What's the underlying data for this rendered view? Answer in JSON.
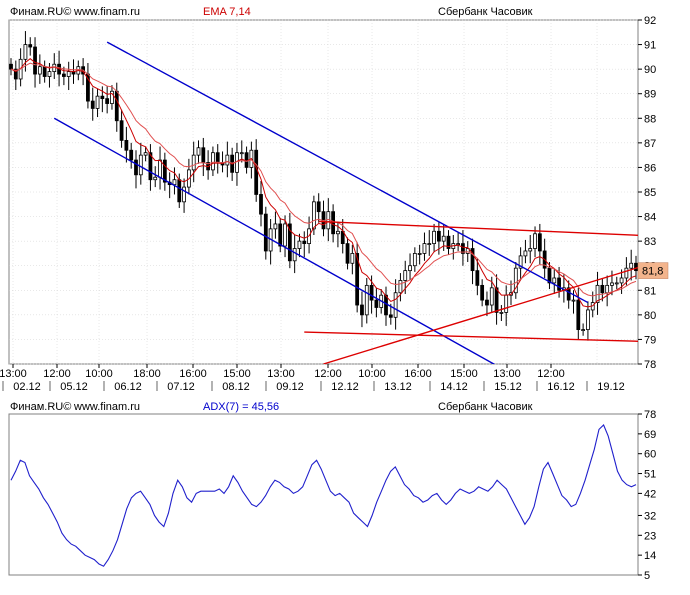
{
  "colors": {
    "background": "#ffffff",
    "plot_border": "#808080",
    "grid": "#d0d0d0",
    "candle": "#000000",
    "ema_fast": "#cc0000",
    "ema_slow": "#e05050",
    "trend_channel": "#0000cc",
    "trend_red": "#dd0000",
    "adx_line": "#2020cc",
    "ema_title": "#cc0000",
    "adx_title": "#0000cc",
    "price_tag_bg": "#f3b48c",
    "text": "#000000"
  },
  "price_panel": {
    "brand": "Финам.RU©",
    "site": "www.finam.ru",
    "indicator_label": "EMA 7,14",
    "instrument": "Сбербанк Часовик",
    "last_price_label": "81,8"
  },
  "adx_panel": {
    "brand": "Финам.RU©",
    "site": "www.finam.ru",
    "indicator_label": "ADX(7) = 45,56",
    "instrument": "Сбербанк Часовик"
  },
  "time_axis": {
    "times": [
      "13:00",
      "12:00",
      "10:00",
      "18:00",
      "16:00",
      "15:00",
      "13:00",
      "12:00",
      "10:00",
      "16:00",
      "15:00",
      "13:00",
      "12:00"
    ],
    "dates": [
      "02.12",
      "05.12",
      "06.12",
      "07.12",
      "08.12",
      "09.12",
      "12.12",
      "13.12",
      "14.12",
      "15.12",
      "16.12",
      "19.12"
    ]
  },
  "chart_data": [
    {
      "type": "candlestick",
      "title": "Сбербанк Часовик",
      "indicator": "EMA 7,14",
      "ylim": [
        78,
        92
      ],
      "yticks": [
        78,
        79,
        80,
        81,
        82,
        83,
        84,
        85,
        86,
        87,
        88,
        89,
        90,
        91,
        92
      ],
      "last_price": 81.8,
      "close": [
        90.0,
        89.6,
        90.4,
        91.0,
        90.9,
        89.8,
        90.1,
        89.7,
        89.9,
        90.2,
        89.8,
        89.7,
        89.9,
        89.8,
        90.1,
        89.8,
        88.7,
        88.4,
        88.9,
        88.8,
        88.6,
        89.1,
        87.9,
        87.1,
        86.7,
        86.3,
        85.7,
        86.5,
        86.6,
        85.5,
        85.6,
        86.3,
        85.4,
        85.3,
        85.5,
        84.6,
        85.2,
        85.9,
        86.5,
        86.8,
        86.2,
        85.9,
        86.6,
        86.2,
        86.1,
        86.5,
        85.8,
        86.6,
        86.6,
        86.0,
        86.7,
        84.9,
        84.1,
        82.6,
        83.5,
        83.7,
        82.8,
        83.7,
        82.2,
        82.7,
        83.0,
        82.9,
        83.5,
        84.6,
        84.2,
        83.5,
        84.2,
        83.3,
        83.4,
        82.9,
        82.1,
        82.5,
        80.4,
        80.0,
        81.2,
        80.6,
        80.3,
        80.8,
        80.0,
        79.9,
        80.9,
        81.4,
        81.8,
        82.0,
        82.5,
        82.5,
        82.9,
        82.9,
        83.4,
        83.0,
        83.2,
        82.7,
        82.9,
        82.9,
        82.5,
        82.7,
        81.8,
        81.2,
        80.6,
        80.4,
        81.1,
        80.1,
        80.1,
        80.8,
        80.9,
        81.9,
        82.4,
        82.6,
        82.7,
        83.3,
        82.6,
        81.9,
        81.3,
        81.5,
        81.0,
        81.1,
        80.6,
        80.6,
        79.4,
        79.4,
        80.2,
        80.5,
        81.2,
        80.9,
        81.2,
        81.3,
        81.3,
        81.5,
        81.9,
        82.1,
        81.8
      ],
      "bands": {
        "upper_offset": 0.6,
        "lower_offset": 0.6
      },
      "trendlines": [
        {
          "name": "channel-upper",
          "color": "trend_channel",
          "from": [
            20,
            91.1
          ],
          "to": [
            120,
            80.5
          ]
        },
        {
          "name": "channel-lower",
          "color": "trend_channel",
          "from": [
            9,
            88.0
          ],
          "to": [
            105,
            77.5
          ]
        },
        {
          "name": "triangle-top",
          "color": "trend_red",
          "from": [
            64,
            83.8
          ],
          "to": [
            135,
            83.2
          ]
        },
        {
          "name": "triangle-bottom",
          "color": "trend_red",
          "from": [
            61,
            79.3
          ],
          "to": [
            135,
            78.9
          ]
        },
        {
          "name": "rising-support",
          "color": "trend_red",
          "from": [
            65,
            78.0
          ],
          "to": [
            135,
            82.2
          ]
        }
      ]
    },
    {
      "type": "line",
      "title": "ADX(7) = 45,56",
      "ylim": [
        5,
        78
      ],
      "yticks": [
        5,
        14,
        23,
        32,
        42,
        51,
        60,
        69,
        78
      ],
      "series": [
        {
          "name": "ADX(7)",
          "values": [
            48,
            52,
            57,
            56,
            50,
            47,
            44,
            40,
            37,
            33,
            29,
            24,
            21,
            19,
            18,
            16,
            14,
            13,
            12,
            10,
            9,
            12,
            16,
            21,
            28,
            35,
            40,
            42,
            43,
            40,
            37,
            32,
            29,
            27,
            33,
            42,
            48,
            45,
            40,
            38,
            42,
            43,
            43,
            43,
            43,
            44,
            42,
            45,
            50,
            47,
            43,
            40,
            37,
            36,
            38,
            41,
            45,
            48,
            47,
            45,
            44,
            42,
            43,
            45,
            50,
            55,
            57,
            53,
            48,
            43,
            41,
            42,
            40,
            38,
            33,
            31,
            29,
            27,
            32,
            38,
            43,
            48,
            52,
            54,
            50,
            46,
            44,
            41,
            40,
            38,
            39,
            41,
            42,
            39,
            37,
            39,
            42,
            44,
            43,
            42,
            43,
            45,
            44,
            43,
            45,
            48,
            46,
            44,
            40,
            36,
            32,
            28,
            31,
            36,
            45,
            53,
            56,
            51,
            46,
            41,
            39,
            36,
            37,
            42,
            48,
            55,
            62,
            71,
            73,
            68,
            60,
            52,
            48,
            46,
            45,
            46
          ]
        }
      ]
    }
  ]
}
